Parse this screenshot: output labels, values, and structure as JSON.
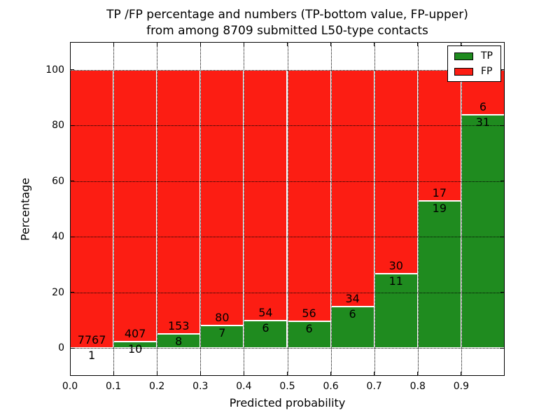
{
  "title": {
    "line1": "TP /FP percentage and numbers (TP-bottom value, FP-upper)",
    "line2": "from among 8709 submitted L50-type contacts"
  },
  "axes": {
    "xlabel": "Predicted probability",
    "ylabel": "Percentage",
    "xticks": [
      "0.0",
      "0.1",
      "0.2",
      "0.3",
      "0.4",
      "0.5",
      "0.6",
      "0.7",
      "0.8",
      "0.9"
    ],
    "yticks": [
      "0",
      "20",
      "40",
      "60",
      "80",
      "100"
    ],
    "xlim": [
      0.0,
      1.0
    ],
    "ylim": [
      -10,
      110
    ],
    "grid": "dotted"
  },
  "chart_data": {
    "type": "bar",
    "stacked": true,
    "normalized": "each bin stacked to 100%",
    "title": "TP /FP percentage and numbers (TP-bottom value, FP-upper) from among 8709 submitted L50-type contacts",
    "xlabel": "Predicted probability",
    "ylabel": "Percentage",
    "total_contacts": 8709,
    "bin_starts": [
      0.0,
      0.1,
      0.2,
      0.3,
      0.4,
      0.5,
      0.6,
      0.7,
      0.8,
      0.9
    ],
    "bin_width": 0.1,
    "series": [
      {
        "name": "TP",
        "color": "#1f8b1f",
        "counts": [
          1,
          10,
          8,
          7,
          6,
          6,
          6,
          11,
          19,
          31
        ]
      },
      {
        "name": "FP",
        "color": "#fc1d13",
        "counts": [
          7767,
          407,
          153,
          80,
          54,
          56,
          34,
          30,
          17,
          6
        ]
      }
    ],
    "tp_percent_per_bin": [
      0.01,
      2.4,
      4.97,
      8.05,
      10.0,
      9.68,
      15.0,
      26.83,
      52.78,
      83.78
    ],
    "legend_position": "upper right"
  },
  "legend": {
    "items": [
      {
        "label": "TP",
        "color": "#1f8b1f"
      },
      {
        "label": "FP",
        "color": "#fc1d13"
      }
    ]
  }
}
